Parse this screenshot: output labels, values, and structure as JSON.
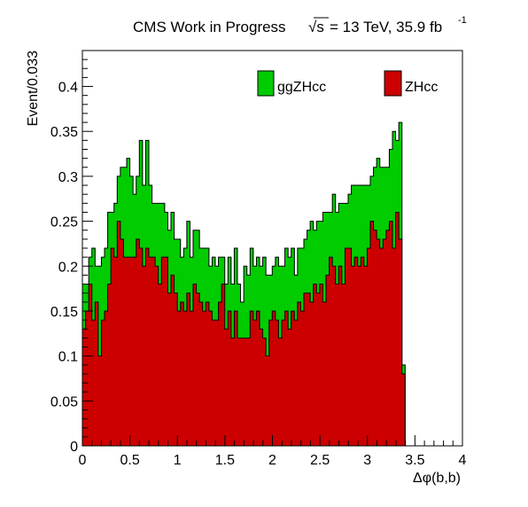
{
  "header": {
    "experiment": "CMS Work in Progress",
    "sqrt_s": "√s",
    "energy_lumi": "= 13 TeV, 35.9 fb",
    "lumi_exponent": "-1"
  },
  "legend": {
    "placement": "top",
    "entries": [
      {
        "label": "ggZHcc",
        "color": "#00cc00"
      },
      {
        "label": "ZHcc",
        "color": "#cc0000"
      }
    ]
  },
  "chart_data": {
    "type": "bar",
    "stacked": true,
    "histogram": true,
    "xlabel": "Δφ(b,b)",
    "ylabel": "Event/0.033",
    "xlim": [
      0,
      4
    ],
    "ylim": [
      0,
      0.44
    ],
    "bin_width": 0.0333,
    "x_ticks": [
      "0",
      "0.5",
      "1",
      "1.5",
      "2",
      "2.5",
      "3",
      "3.5",
      "4"
    ],
    "y_ticks": [
      "0",
      "0.05",
      "0.1",
      "0.15",
      "0.2",
      "0.25",
      "0.3",
      "0.35",
      "0.4"
    ],
    "grid": false,
    "series": [
      {
        "name": "ZHcc",
        "color": "#cc0000",
        "values": [
          0.13,
          0.15,
          0.18,
          0.14,
          0.16,
          0.1,
          0.14,
          0.15,
          0.18,
          0.22,
          0.21,
          0.25,
          0.23,
          0.21,
          0.21,
          0.21,
          0.21,
          0.23,
          0.22,
          0.2,
          0.22,
          0.21,
          0.21,
          0.2,
          0.18,
          0.21,
          0.21,
          0.17,
          0.19,
          0.17,
          0.15,
          0.16,
          0.15,
          0.17,
          0.15,
          0.18,
          0.17,
          0.16,
          0.15,
          0.16,
          0.15,
          0.14,
          0.14,
          0.16,
          0.18,
          0.13,
          0.15,
          0.12,
          0.15,
          0.12,
          0.12,
          0.12,
          0.12,
          0.15,
          0.14,
          0.15,
          0.13,
          0.12,
          0.1,
          0.14,
          0.15,
          0.14,
          0.12,
          0.14,
          0.15,
          0.13,
          0.15,
          0.14,
          0.16,
          0.15,
          0.17,
          0.17,
          0.16,
          0.18,
          0.17,
          0.18,
          0.16,
          0.19,
          0.21,
          0.2,
          0.18,
          0.2,
          0.18,
          0.22,
          0.22,
          0.2,
          0.21,
          0.2,
          0.21,
          0.2,
          0.22,
          0.25,
          0.24,
          0.23,
          0.22,
          0.23,
          0.24,
          0.25,
          0.22,
          0.26,
          0.23,
          0.08
        ]
      },
      {
        "name": "ggZHcc",
        "color": "#00cc00",
        "values": [
          0.05,
          0.03,
          0.03,
          0.08,
          0.04,
          0.1,
          0.07,
          0.07,
          0.08,
          0.04,
          0.06,
          0.05,
          0.08,
          0.1,
          0.11,
          0.09,
          0.07,
          0.07,
          0.12,
          0.09,
          0.12,
          0.08,
          0.06,
          0.07,
          0.09,
          0.06,
          0.05,
          0.07,
          0.07,
          0.06,
          0.08,
          0.05,
          0.07,
          0.08,
          0.06,
          0.06,
          0.07,
          0.06,
          0.07,
          0.06,
          0.05,
          0.07,
          0.06,
          0.05,
          0.03,
          0.05,
          0.06,
          0.06,
          0.07,
          0.06,
          0.04,
          0.08,
          0.07,
          0.07,
          0.06,
          0.06,
          0.07,
          0.09,
          0.09,
          0.05,
          0.05,
          0.07,
          0.08,
          0.06,
          0.07,
          0.08,
          0.07,
          0.05,
          0.06,
          0.07,
          0.06,
          0.07,
          0.09,
          0.06,
          0.08,
          0.07,
          0.1,
          0.07,
          0.05,
          0.08,
          0.08,
          0.07,
          0.09,
          0.05,
          0.06,
          0.09,
          0.08,
          0.09,
          0.08,
          0.09,
          0.07,
          0.05,
          0.07,
          0.09,
          0.09,
          0.08,
          0.07,
          0.08,
          0.13,
          0.08,
          0.13,
          0.01
        ]
      }
    ]
  }
}
